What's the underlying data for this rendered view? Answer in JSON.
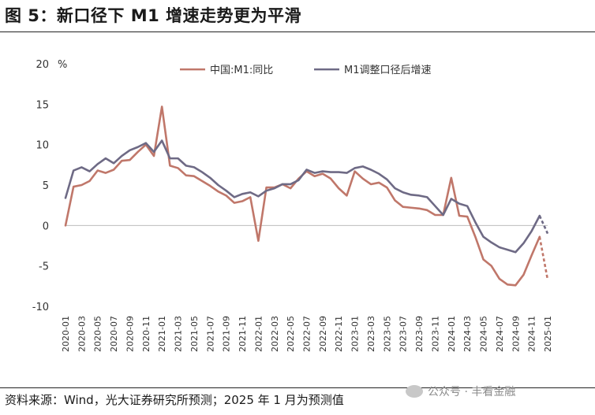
{
  "title": "图 5：新口径下 M1 增速走势更为平滑",
  "source": "资料来源：Wind，光大证券研究所预测；2025 年 1 月为预测值",
  "watermark": "公众号 · 丰看金融",
  "colors": {
    "series1": "#c0776a",
    "series2": "#6e6a85"
  },
  "chart_data": {
    "type": "line",
    "ylabel": "%",
    "ylim": [
      -10,
      20
    ],
    "yticks": [
      -10,
      -5,
      0,
      5,
      10,
      15,
      20
    ],
    "ytick_labels": [
      "-10",
      "-5",
      "0",
      "5",
      "10",
      "15",
      "20"
    ],
    "xtick_labels": [
      "2020-01",
      "2020-03",
      "2020-05",
      "2020-07",
      "2020-09",
      "2020-11",
      "2021-01",
      "2021-03",
      "2021-05",
      "2021-07",
      "2021-09",
      "2021-11",
      "2022-01",
      "2022-03",
      "2022-05",
      "2022-07",
      "2022-09",
      "2022-11",
      "2023-01",
      "2023-03",
      "2023-05",
      "2023-07",
      "2023-09",
      "2023-11",
      "2024-01",
      "2024-03",
      "2024-05",
      "2024-07",
      "2024-09",
      "2024-11",
      "2025-01"
    ],
    "x": [
      "2020-01",
      "2020-02",
      "2020-03",
      "2020-04",
      "2020-05",
      "2020-06",
      "2020-07",
      "2020-08",
      "2020-09",
      "2020-10",
      "2020-11",
      "2020-12",
      "2021-01",
      "2021-02",
      "2021-03",
      "2021-04",
      "2021-05",
      "2021-06",
      "2021-07",
      "2021-08",
      "2021-09",
      "2021-10",
      "2021-11",
      "2021-12",
      "2022-01",
      "2022-02",
      "2022-03",
      "2022-04",
      "2022-05",
      "2022-06",
      "2022-07",
      "2022-08",
      "2022-09",
      "2022-10",
      "2022-11",
      "2022-12",
      "2023-01",
      "2023-02",
      "2023-03",
      "2023-04",
      "2023-05",
      "2023-06",
      "2023-07",
      "2023-08",
      "2023-09",
      "2023-10",
      "2023-11",
      "2023-12",
      "2024-01",
      "2024-02",
      "2024-03",
      "2024-04",
      "2024-05",
      "2024-06",
      "2024-07",
      "2024-08",
      "2024-09",
      "2024-10",
      "2024-11",
      "2024-12",
      "2025-01"
    ],
    "legend_position": "top",
    "series": [
      {
        "name": "中国:M1:同比",
        "color": "#c0776a",
        "forecast_from_index": 59,
        "values": [
          0.0,
          4.8,
          5.0,
          5.5,
          6.8,
          6.5,
          6.9,
          8.0,
          8.1,
          9.1,
          10.0,
          8.6,
          14.7,
          7.4,
          7.1,
          6.2,
          6.1,
          5.5,
          4.9,
          4.2,
          3.7,
          2.8,
          3.0,
          3.5,
          -1.9,
          4.7,
          4.7,
          5.1,
          4.6,
          5.8,
          6.7,
          6.1,
          6.4,
          5.8,
          4.6,
          3.7,
          6.7,
          5.8,
          5.1,
          5.3,
          4.7,
          3.1,
          2.3,
          2.2,
          2.1,
          1.9,
          1.3,
          1.3,
          5.9,
          1.2,
          1.1,
          -1.4,
          -4.2,
          -5.0,
          -6.6,
          -7.3,
          -7.4,
          -6.1,
          -3.7,
          -1.4,
          -6.7
        ]
      },
      {
        "name": "M1调整口径后增速",
        "color": "#6e6a85",
        "forecast_from_index": 59,
        "values": [
          3.4,
          6.8,
          7.2,
          6.7,
          7.6,
          8.3,
          7.7,
          8.6,
          9.3,
          9.7,
          10.2,
          9.1,
          10.5,
          8.3,
          8.3,
          7.4,
          7.2,
          6.6,
          5.9,
          5.0,
          4.3,
          3.5,
          3.9,
          4.1,
          3.6,
          4.3,
          4.6,
          5.1,
          5.1,
          5.6,
          6.9,
          6.5,
          6.7,
          6.6,
          6.6,
          6.5,
          7.1,
          7.3,
          6.9,
          6.4,
          5.7,
          4.6,
          4.1,
          3.8,
          3.7,
          3.5,
          2.4,
          1.3,
          3.3,
          2.7,
          2.4,
          0.4,
          -1.4,
          -2.1,
          -2.7,
          -3.0,
          -3.3,
          -2.2,
          -0.7,
          1.2,
          -1.0
        ]
      }
    ]
  }
}
